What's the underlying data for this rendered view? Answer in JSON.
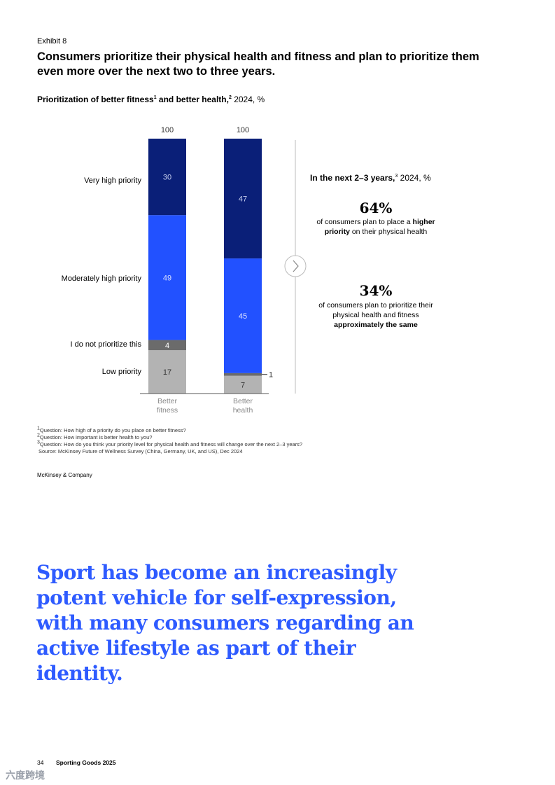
{
  "exhibit_label": "Exhibit 8",
  "headline": "Consumers prioritize their physical health and fitness and plan to prioritize them even more over the next two to three years.",
  "subtitle": {
    "part1": "Prioritization of better fitness",
    "sup1": "1",
    "part2": " and better health,",
    "sup2": "2",
    "part3": " 2024, %"
  },
  "chart_data": {
    "type": "bar",
    "stacked": true,
    "categories": [
      "Better fitness",
      "Better health"
    ],
    "category_labels": [
      [
        "Better",
        "fitness"
      ],
      [
        "Better",
        "health"
      ]
    ],
    "totals": [
      "100",
      "100"
    ],
    "series": [
      {
        "name": "Low priority",
        "values": [
          17,
          7
        ],
        "color": "#b3b3b3",
        "label_color": "#333333"
      },
      {
        "name": "I do not prioritize this",
        "values": [
          4,
          1
        ],
        "color": "#6b6b6b",
        "label_color": "#ffffff"
      },
      {
        "name": "Moderately high priority",
        "values": [
          49,
          45
        ],
        "color": "#2251ff",
        "label_color": "#d9e0ff"
      },
      {
        "name": "Very high priority",
        "values": [
          30,
          47
        ],
        "color": "#0a1f78",
        "label_color": "#c8d0f0"
      }
    ],
    "ylim": [
      0,
      100
    ]
  },
  "series_labels": {
    "very_high": "Very high priority",
    "moderately_high": "Moderately high priority",
    "not_prioritize": "I do not prioritize this",
    "low": "Low priority"
  },
  "right_panel": {
    "title_bold": "In the next 2–3 years,",
    "title_sup": "3",
    "title_rest": " 2024, %",
    "stat1_value": "64%",
    "stat1_text_a": "of consumers plan to place a ",
    "stat1_text_b": "higher",
    "stat1_text_c": "priority",
    "stat1_text_d": " on their physical health",
    "stat2_value": "34%",
    "stat2_text_a": "of consumers plan to prioritize their",
    "stat2_text_b": "physical health and fitness",
    "stat2_text_c": "approximately the same"
  },
  "footnotes": [
    {
      "sup": "1",
      "text": "Question: How high of a priority do you place on better fitness?"
    },
    {
      "sup": "2",
      "text": "Question: How important is better health to you?"
    },
    {
      "sup": "3",
      "text": "Question: How do you think your priority level for physical health and fitness will change over the next 2–3 years?"
    },
    {
      "sup": "",
      "text": "Source: McKinsey Future of Wellness Survey (China, Germany, UK, and US), Dec 2024"
    }
  ],
  "brand": "McKinsey & Company",
  "pull_quote": "Sport has become an increasingly potent vehicle for self-expression, with many consumers regarding an active lifestyle as part of their identity.",
  "page_number": "34",
  "running_title": "Sporting Goods 2025",
  "watermark": "六度跨境"
}
